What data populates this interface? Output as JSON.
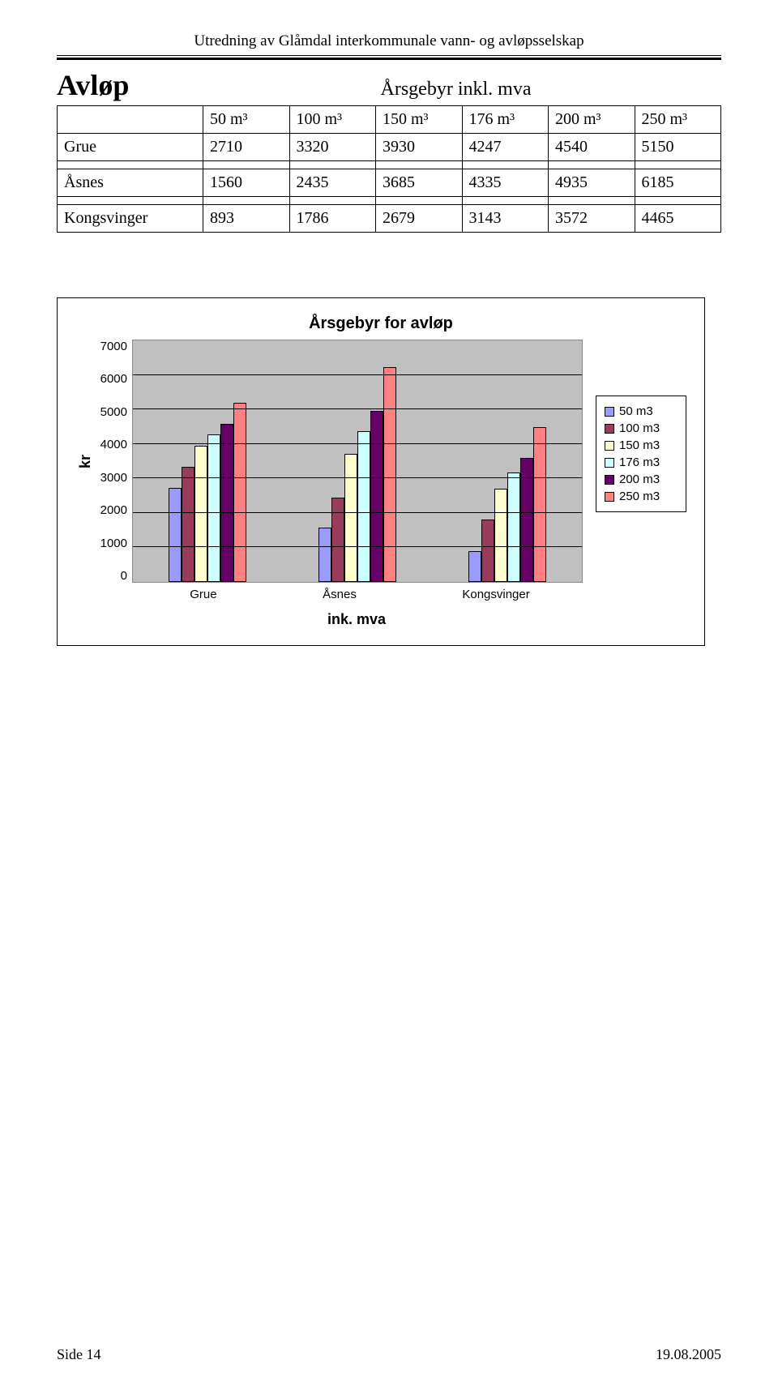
{
  "header": "Utredning av Glåmdal interkommunale vann- og avløpsselskap",
  "section_title": "Avløp",
  "table_title": "Årsgebyr inkl. mva",
  "columns": [
    "50 m³",
    "100 m³",
    "150 m³",
    "176 m³",
    "200 m³",
    "250 m³"
  ],
  "rows": [
    {
      "label": "Grue",
      "v": [
        2710,
        3320,
        3930,
        4247,
        4540,
        5150
      ]
    },
    {
      "label": "Åsnes",
      "v": [
        1560,
        2435,
        3685,
        4335,
        4935,
        6185
      ]
    },
    {
      "label": "Kongsvinger",
      "v": [
        893,
        1786,
        2679,
        3143,
        3572,
        4465
      ]
    }
  ],
  "chart": {
    "type": "bar",
    "title": "Årsgebyr for avløp",
    "ylabel": "kr",
    "xlabel": "ink. mva",
    "ymax": 7000,
    "ytick_step": 1000,
    "yticks": [
      7000,
      6000,
      5000,
      4000,
      3000,
      2000,
      1000,
      0
    ],
    "categories": [
      "Grue",
      "Åsnes",
      "Kongsvinger"
    ],
    "series": [
      {
        "label": " 50 m3",
        "color": "#9b9bff"
      },
      {
        "label": " 100 m3",
        "color": "#9a3b5b"
      },
      {
        "label": "150 m3",
        "color": "#ffffcc"
      },
      {
        "label": "176 m3",
        "color": "#ccffff"
      },
      {
        "label": "200 m3",
        "color": "#660066"
      },
      {
        "label": "250 m3",
        "color": "#ff8080"
      }
    ],
    "plot_bg": "#c0c0c0",
    "grid_color": "#000000"
  },
  "footer": {
    "left": "Side 14",
    "right": "19.08.2005"
  }
}
